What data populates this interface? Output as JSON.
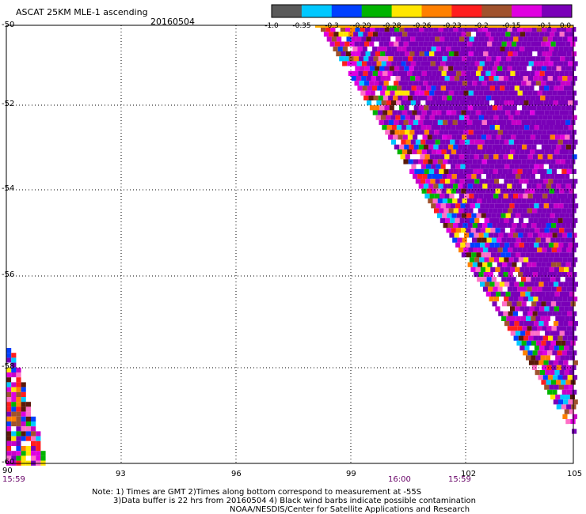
{
  "header": {
    "title": "ASCAT 25KM MLE-1 ascending",
    "date": "20160504"
  },
  "colorbar": {
    "segments": [
      "#5a5a5a",
      "#00c8ff",
      "#0040ff",
      "#00b400",
      "#ffe600",
      "#ff8000",
      "#ff1e1e",
      "#a0522d",
      "#e000e0",
      "#7a00b8"
    ],
    "labels": [
      "-1.0",
      "-0.35",
      "-0.3",
      "-0.29",
      "-0.28",
      "-0.26",
      "-0.23",
      "-0.2",
      "-0.15",
      "-0.1",
      "0.0"
    ]
  },
  "axes": {
    "lat_labels": [
      "-50",
      "-52",
      "-54",
      "-56",
      "-58",
      "-60"
    ],
    "lon_labels": [
      "90",
      "93",
      "96",
      "99",
      "102",
      "105"
    ]
  },
  "time_labels": [
    "15:59",
    "16:00",
    "15:59"
  ],
  "notes": [
    "Note: 1) Times are GMT 2)Times along bottom correspond to measurement at -55S",
    "3)Data buffer is 22 hrs from 20160504 4) Black wind barbs indicate possible contamination",
    "NOAA/NESDIS/Center for Satellite Applications and Research"
  ]
}
